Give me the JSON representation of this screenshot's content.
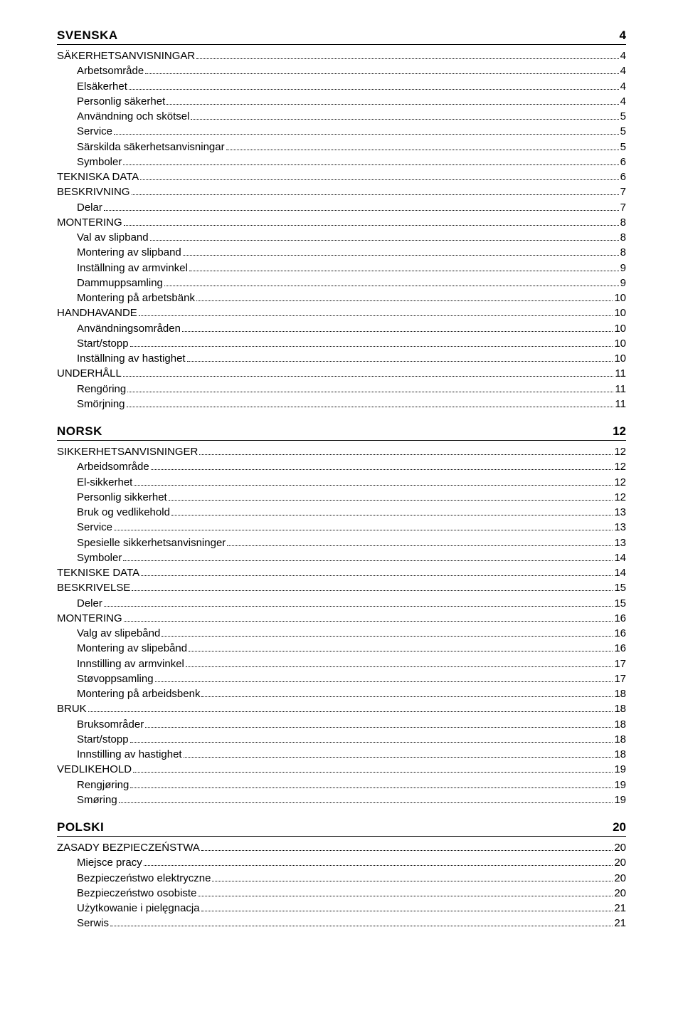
{
  "sections": [
    {
      "title": "SVENSKA",
      "page": "4",
      "entries": [
        {
          "label": "SÄKERHETSANVISNINGAR",
          "page": "4",
          "indent": 0
        },
        {
          "label": "Arbetsområde",
          "page": "4",
          "indent": 1
        },
        {
          "label": "Elsäkerhet",
          "page": "4",
          "indent": 1
        },
        {
          "label": "Personlig säkerhet",
          "page": "4",
          "indent": 1
        },
        {
          "label": "Användning och skötsel",
          "page": "5",
          "indent": 1
        },
        {
          "label": "Service",
          "page": "5",
          "indent": 1
        },
        {
          "label": "Särskilda säkerhetsanvisningar",
          "page": "5",
          "indent": 1
        },
        {
          "label": "Symboler",
          "page": "6",
          "indent": 1
        },
        {
          "label": "TEKNISKA DATA",
          "page": "6",
          "indent": 0
        },
        {
          "label": "BESKRIVNING",
          "page": "7",
          "indent": 0
        },
        {
          "label": "Delar",
          "page": "7",
          "indent": 1
        },
        {
          "label": "MONTERING",
          "page": "8",
          "indent": 0
        },
        {
          "label": "Val av slipband",
          "page": "8",
          "indent": 1
        },
        {
          "label": "Montering av slipband",
          "page": "8",
          "indent": 1
        },
        {
          "label": "Inställning av armvinkel",
          "page": "9",
          "indent": 1
        },
        {
          "label": "Dammuppsamling",
          "page": "9",
          "indent": 1
        },
        {
          "label": "Montering på arbetsbänk",
          "page": "10",
          "indent": 1
        },
        {
          "label": "HANDHAVANDE",
          "page": "10",
          "indent": 0
        },
        {
          "label": "Användningsområden",
          "page": "10",
          "indent": 1
        },
        {
          "label": "Start/stopp",
          "page": "10",
          "indent": 1
        },
        {
          "label": "Inställning av hastighet",
          "page": "10",
          "indent": 1
        },
        {
          "label": "UNDERHÅLL",
          "page": "11",
          "indent": 0
        },
        {
          "label": "Rengöring",
          "page": "11",
          "indent": 1
        },
        {
          "label": "Smörjning",
          "page": "11",
          "indent": 1
        }
      ]
    },
    {
      "title": "NORSK",
      "page": "12",
      "entries": [
        {
          "label": "SIKKERHETSANVISNINGER",
          "page": "12",
          "indent": 0
        },
        {
          "label": "Arbeidsområde",
          "page": "12",
          "indent": 1
        },
        {
          "label": "El-sikkerhet",
          "page": "12",
          "indent": 1
        },
        {
          "label": "Personlig sikkerhet",
          "page": "12",
          "indent": 1
        },
        {
          "label": "Bruk og vedlikehold",
          "page": "13",
          "indent": 1
        },
        {
          "label": "Service",
          "page": "13",
          "indent": 1
        },
        {
          "label": "Spesielle sikkerhetsanvisninger",
          "page": "13",
          "indent": 1
        },
        {
          "label": "Symboler",
          "page": "14",
          "indent": 1
        },
        {
          "label": "TEKNISKE DATA",
          "page": "14",
          "indent": 0
        },
        {
          "label": "BESKRIVELSE",
          "page": "15",
          "indent": 0
        },
        {
          "label": "Deler",
          "page": "15",
          "indent": 1
        },
        {
          "label": "MONTERING",
          "page": "16",
          "indent": 0
        },
        {
          "label": "Valg av slipebånd",
          "page": "16",
          "indent": 1
        },
        {
          "label": "Montering av slipebånd",
          "page": "16",
          "indent": 1
        },
        {
          "label": "Innstilling av armvinkel",
          "page": "17",
          "indent": 1
        },
        {
          "label": "Støvoppsamling",
          "page": "17",
          "indent": 1
        },
        {
          "label": "Montering på arbeidsbenk",
          "page": "18",
          "indent": 1
        },
        {
          "label": "BRUK",
          "page": "18",
          "indent": 0
        },
        {
          "label": "Bruksområder",
          "page": "18",
          "indent": 1
        },
        {
          "label": "Start/stopp",
          "page": "18",
          "indent": 1
        },
        {
          "label": "Innstilling av hastighet",
          "page": "18",
          "indent": 1
        },
        {
          "label": "VEDLIKEHOLD",
          "page": "19",
          "indent": 0
        },
        {
          "label": "Rengjøring",
          "page": "19",
          "indent": 1
        },
        {
          "label": "Smøring",
          "page": "19",
          "indent": 1
        }
      ]
    },
    {
      "title": "POLSKI",
      "page": "20",
      "entries": [
        {
          "label": "ZASADY BEZPIECZEŃSTWA",
          "page": "20",
          "indent": 0
        },
        {
          "label": "Miejsce pracy",
          "page": "20",
          "indent": 1
        },
        {
          "label": "Bezpieczeństwo elektryczne",
          "page": "20",
          "indent": 1
        },
        {
          "label": "Bezpieczeństwo osobiste",
          "page": "20",
          "indent": 1
        },
        {
          "label": "Użytkowanie i pielęgnacja",
          "page": "21",
          "indent": 1
        },
        {
          "label": "Serwis",
          "page": "21",
          "indent": 1
        }
      ]
    }
  ],
  "first_section_no_top_margin": true,
  "colors": {
    "text": "#000000",
    "background": "#ffffff",
    "rule": "#000000"
  }
}
